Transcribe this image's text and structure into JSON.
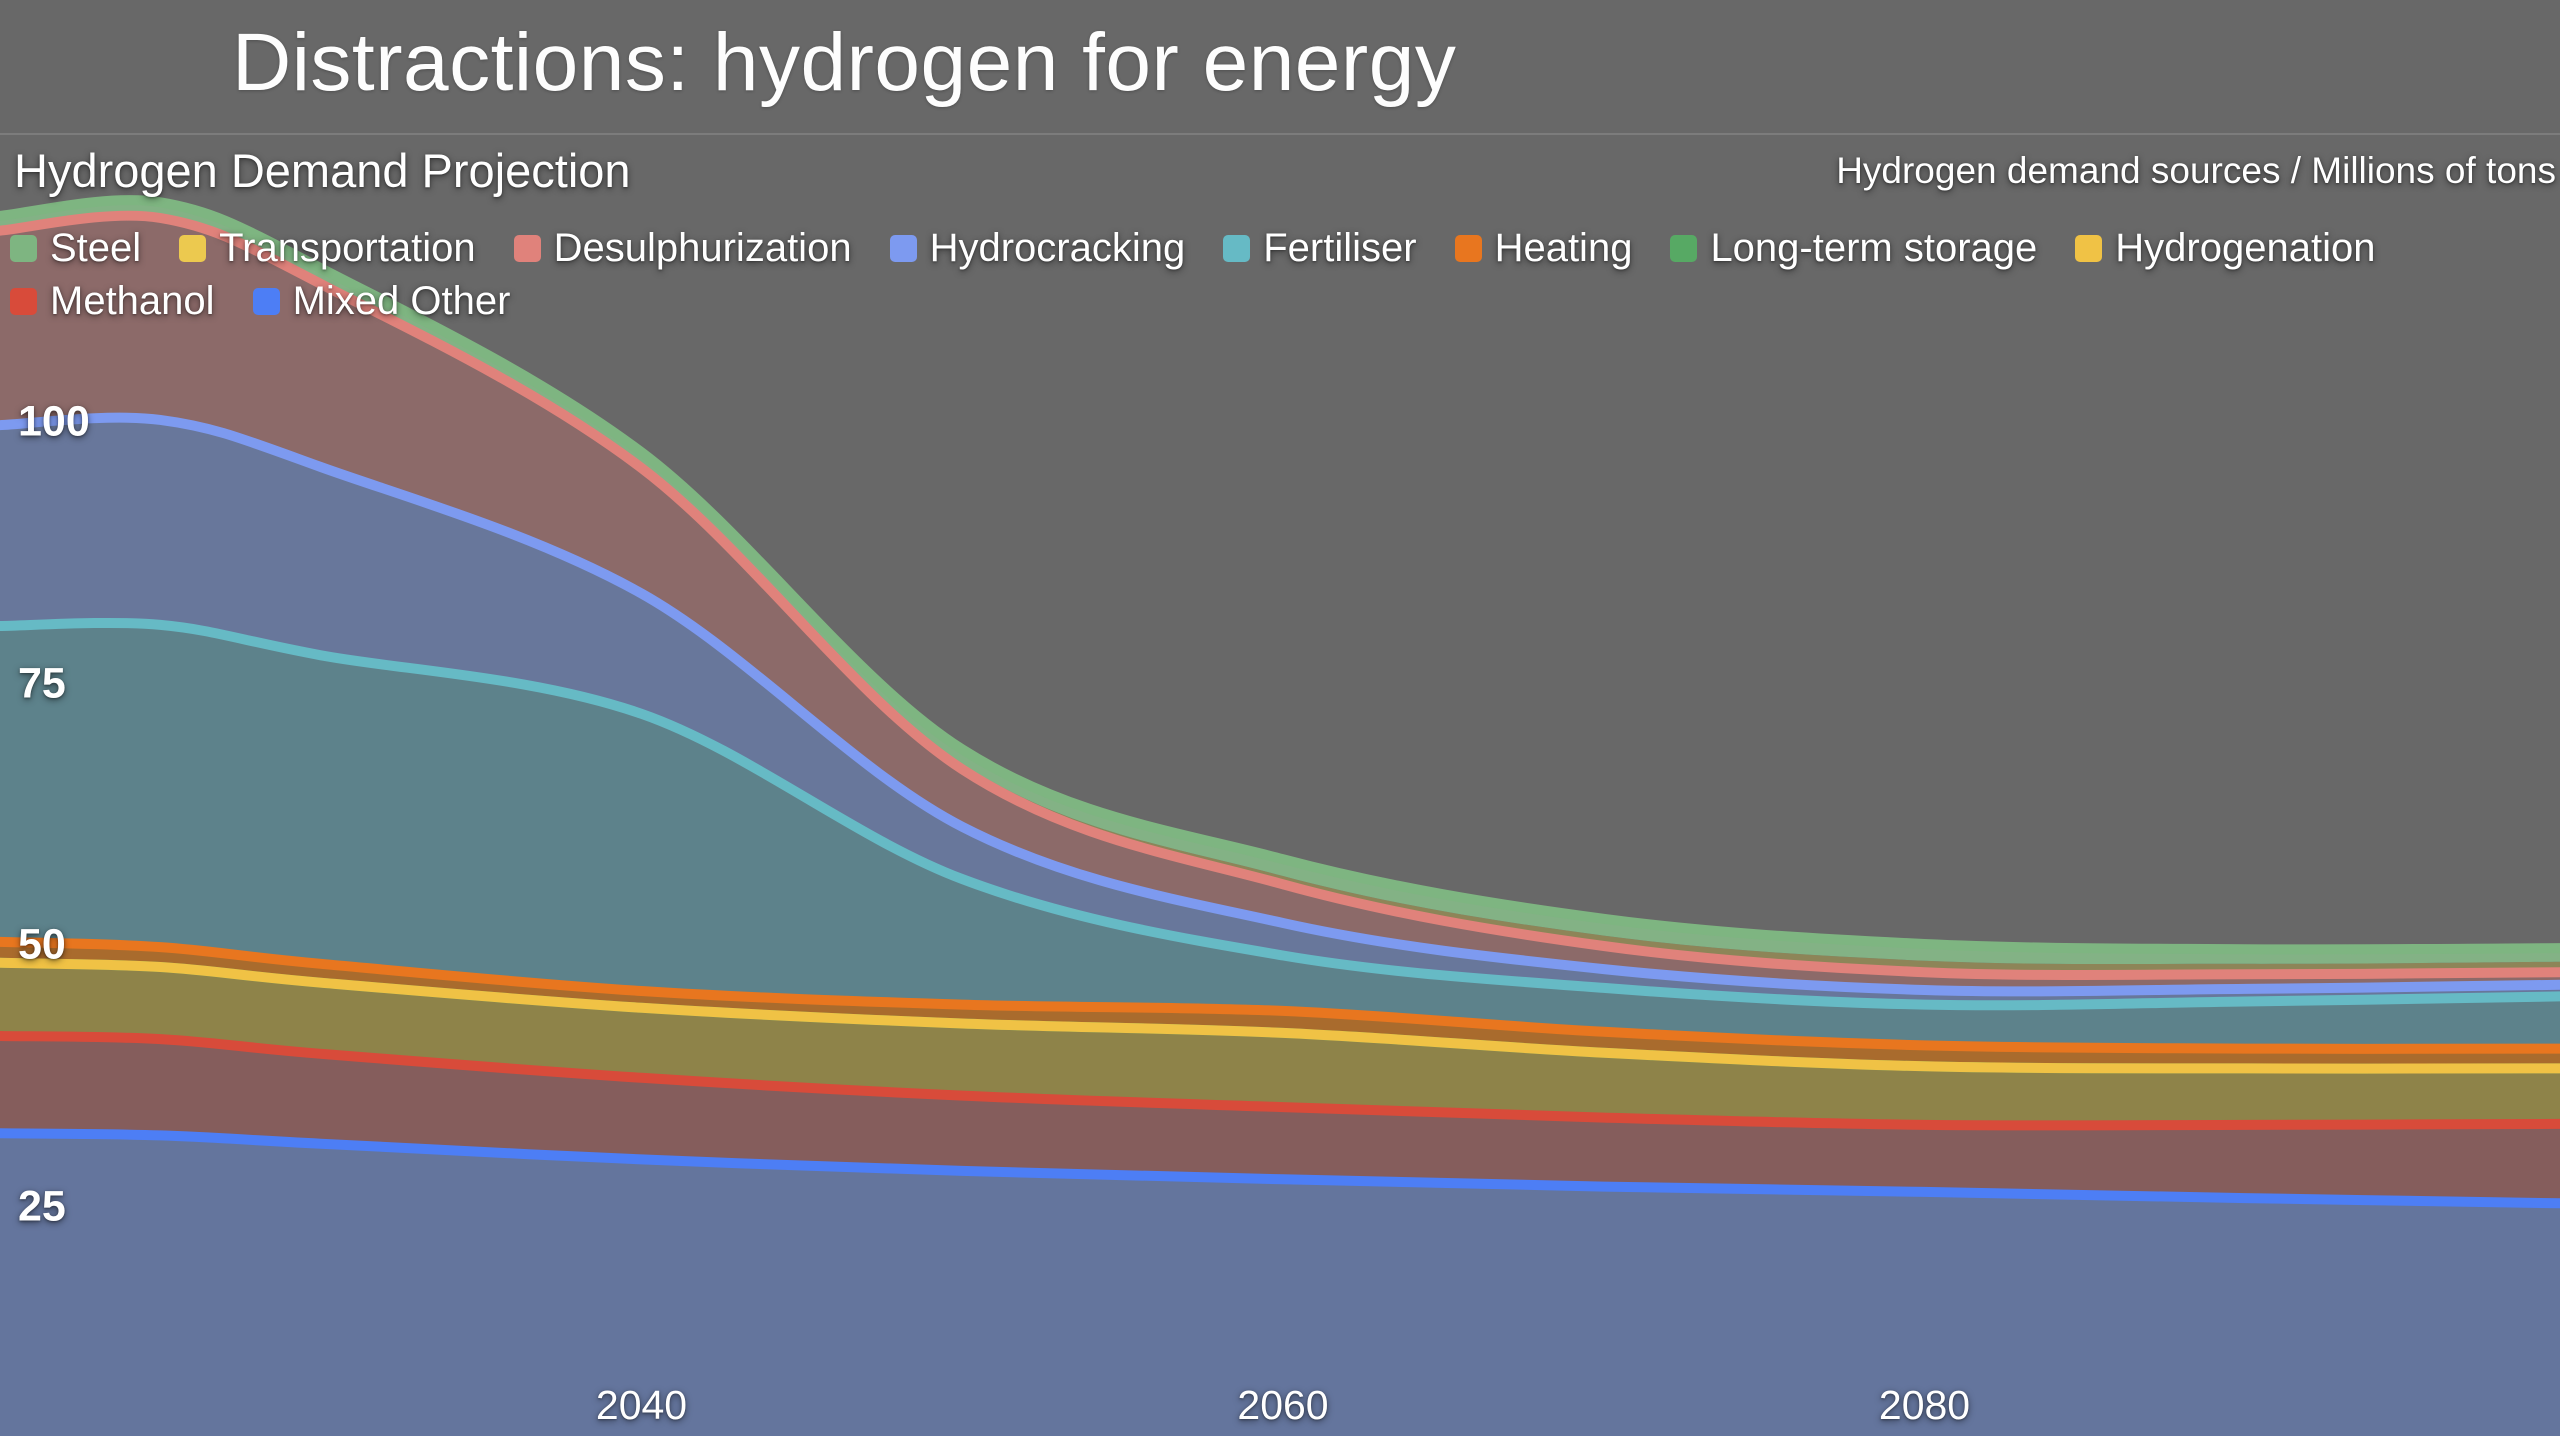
{
  "page": {
    "title": "Distractions: hydrogen for energy",
    "background_color": "#686868",
    "divider_color": "#7c7c7c"
  },
  "chart": {
    "title": "Hydrogen Demand Projection",
    "subtitle": "Hydrogen demand sources / Millions of tons"
  },
  "chart_data": {
    "type": "area",
    "stacked": true,
    "stack_direction": "first-series-on-top",
    "title": "Hydrogen Demand Projection",
    "subtitle": "Hydrogen demand sources / Millions of tons",
    "xlabel": "",
    "ylabel": "",
    "xlim": [
      2020,
      2100
    ],
    "ylim": [
      0,
      130
    ],
    "x_ticks": [
      2040,
      2060,
      2080
    ],
    "y_ticks": [
      25,
      50,
      75,
      100
    ],
    "grid": false,
    "legend": {
      "position": "top-left",
      "rows_break_after": 8
    },
    "x": [
      2020,
      2025,
      2030,
      2040,
      2050,
      2060,
      2070,
      2080,
      2090,
      2100
    ],
    "series": [
      {
        "name": "Steel",
        "color": "#7eb581",
        "fill": "#83b285",
        "stroke_width": 10,
        "values": [
          1.2,
          1.3,
          1.3,
          1.2,
          1.4,
          1.6,
          1.6,
          1.6,
          1.4,
          1.3
        ]
      },
      {
        "name": "Transportation",
        "color": "#ecc94f",
        "fill": "#8d8558",
        "stroke_width": 0,
        "values": [
          0.2,
          0.2,
          0.2,
          0.3,
          0.5,
          0.8,
          1.0,
          1.1,
          1.0,
          1.0
        ]
      },
      {
        "name": "Desulphurization",
        "color": "#e0827b",
        "fill": "#8c6a69",
        "stroke_width": 10,
        "values": [
          18.6,
          19.3,
          17.5,
          12.0,
          5.5,
          3.7,
          2.2,
          1.7,
          1.4,
          1.2
        ]
      },
      {
        "name": "Hydrocracking",
        "color": "#7d9af0",
        "fill": "#68779b",
        "stroke_width": 10,
        "values": [
          19.2,
          19.6,
          18.0,
          11.5,
          5.0,
          3.1,
          1.8,
          1.4,
          1.2,
          1.1
        ]
      },
      {
        "name": "Fertiliser",
        "color": "#66bac5",
        "fill": "#5d828b",
        "stroke_width": 10,
        "values": [
          30.2,
          30.8,
          29.5,
          26.5,
          12.0,
          5.3,
          4.2,
          3.9,
          4.5,
          5.0
        ]
      },
      {
        "name": "Heating",
        "color": "#e8761f",
        "fill": "#a96b2d",
        "stroke_width": 10,
        "values": [
          2.0,
          1.9,
          1.8,
          1.6,
          1.8,
          2.1,
          2.0,
          2.0,
          1.9,
          1.9
        ]
      },
      {
        "name": "Long-term storage",
        "color": "#57a964",
        "fill": "#57a964",
        "stroke_width": 10,
        "values": [
          0,
          0,
          0,
          0,
          0,
          0,
          0,
          0,
          0,
          0
        ]
      },
      {
        "name": "Hydrogenation",
        "color": "#f0c245",
        "fill": "#8e8349",
        "stroke_width": 10,
        "values": [
          7.0,
          6.9,
          6.8,
          6.7,
          6.9,
          7.1,
          6.2,
          5.6,
          5.4,
          5.3
        ]
      },
      {
        "name": "Methanol",
        "color": "#d84b3a",
        "fill": "#855d5c",
        "stroke_width": 10,
        "values": [
          9.3,
          9.2,
          8.6,
          7.8,
          7.2,
          6.9,
          6.6,
          6.4,
          7.0,
          7.6
        ]
      },
      {
        "name": "Mixed Other",
        "color": "#4d7ef5",
        "fill": "#64759d",
        "stroke_width": 10,
        "values": [
          32.0,
          31.8,
          31.0,
          29.5,
          28.4,
          27.6,
          26.9,
          26.4,
          25.8,
          25.3
        ]
      }
    ]
  }
}
